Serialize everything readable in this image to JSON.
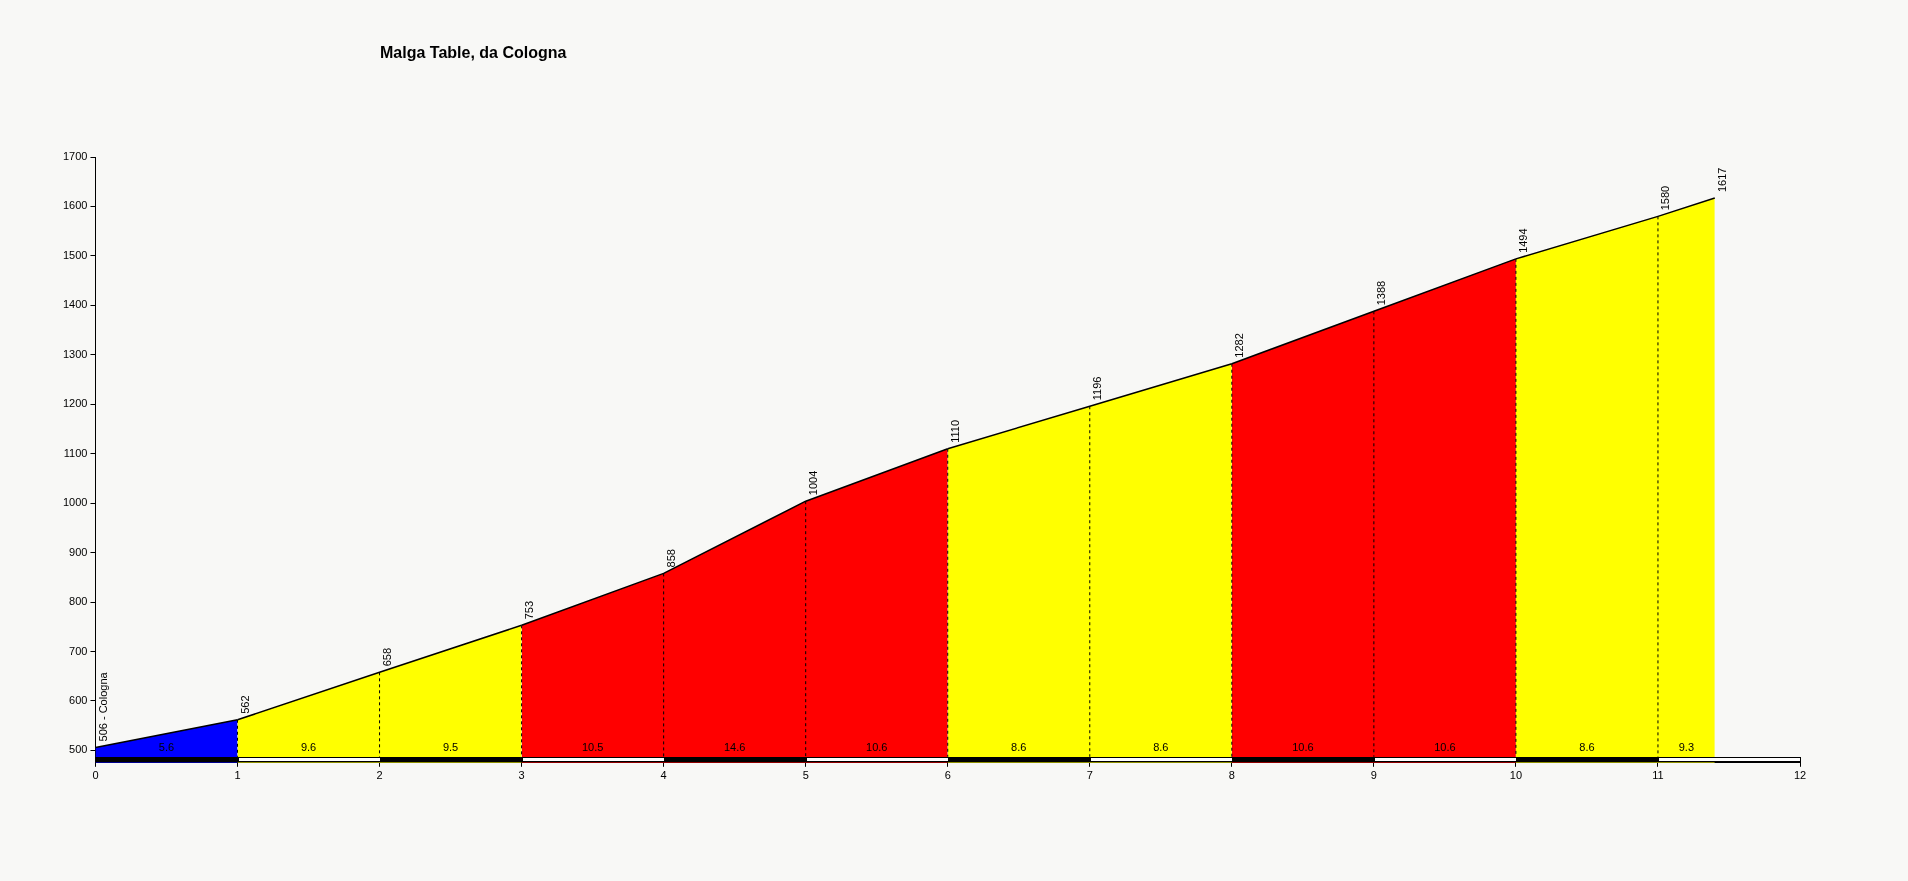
{
  "chart_data": {
    "type": "area",
    "title": "Malga Table, da Cologna",
    "series": [
      {
        "color": "#0000ff",
        "x": [
          0,
          1
        ],
        "values": [
          506,
          562
        ],
        "value_labels": [
          "506 - Cologna",
          null
        ]
      },
      {
        "color": "#ffff00",
        "x": [
          1,
          2,
          3
        ],
        "values": [
          562,
          658,
          753
        ],
        "value_labels": [
          "562",
          "658",
          null
        ]
      },
      {
        "color": "#ff0000",
        "x": [
          3,
          4,
          5,
          6
        ],
        "values": [
          753,
          858,
          1004,
          1110
        ],
        "value_labels": [
          "753",
          "858",
          "1004",
          null
        ]
      },
      {
        "color": "#ffff00",
        "x": [
          6,
          7,
          8
        ],
        "values": [
          1110,
          1196,
          1282
        ],
        "value_labels": [
          "1110",
          "1196",
          null
        ]
      },
      {
        "color": "#ff0000",
        "x": [
          8,
          9,
          10
        ],
        "values": [
          1282,
          1388,
          1494
        ],
        "value_labels": [
          "1282",
          "1388",
          null
        ]
      },
      {
        "color": "#ffff00",
        "x": [
          10,
          11,
          11.4
        ],
        "values": [
          1494,
          1580,
          1617
        ],
        "value_labels": [
          "1494",
          "1580",
          "1617"
        ]
      }
    ],
    "annotations": [
      "5.6",
      "9.6",
      "9.5",
      "10.5",
      "14.6",
      "10.6",
      "8.6",
      "8.6",
      "10.6",
      "10.6",
      "8.6",
      "9.3"
    ],
    "xlim": [
      0,
      12
    ],
    "xticks": [
      0,
      1,
      2,
      3,
      4,
      5,
      6,
      7,
      8,
      9,
      10,
      11,
      12
    ],
    "ylim": [
      475,
      1700
    ],
    "yticks": [
      500,
      600,
      700,
      800,
      900,
      1000,
      1100,
      1200,
      1300,
      1400,
      1500,
      1600,
      1700
    ],
    "grid": "x",
    "legend": false,
    "marker": "none",
    "line_style": "solid"
  }
}
